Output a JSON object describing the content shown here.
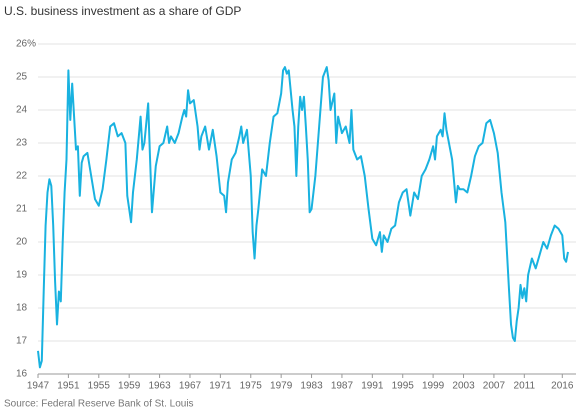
{
  "chart_data": {
    "type": "line",
    "title": "U.S. business investment as a share of GDP",
    "source": "Source: Federal Reserve Bank of St. Louis",
    "color": "#19b2e0",
    "grid": true,
    "xlim": [
      1947,
      2016.75
    ],
    "xticks": [
      1947,
      1951,
      1955,
      1959,
      1963,
      1967,
      1971,
      1975,
      1979,
      1983,
      1987,
      1991,
      1995,
      1999,
      2003,
      2007,
      2011,
      2016
    ],
    "ylim": [
      16,
      26
    ],
    "yticks": [
      16,
      17,
      18,
      19,
      20,
      21,
      22,
      23,
      24,
      25,
      {
        "value": 26,
        "label": "26%"
      }
    ],
    "x": [
      1947.0,
      1947.25,
      1947.5,
      1947.75,
      1948,
      1948.25,
      1948.5,
      1948.75,
      1949,
      1949.25,
      1949.5,
      1949.75,
      1950,
      1950.25,
      1950.5,
      1950.75,
      1951,
      1951.25,
      1951.5,
      1951.75,
      1952,
      1952.25,
      1952.5,
      1952.75,
      1953,
      1953.5,
      1954,
      1954.5,
      1955,
      1955.5,
      1956,
      1956.5,
      1957,
      1957.5,
      1958,
      1958.5,
      1958.75,
      1959,
      1959.25,
      1959.5,
      1960,
      1960.5,
      1960.75,
      1961,
      1961.5,
      1961.75,
      1962,
      1962.25,
      1962.5,
      1963,
      1963.5,
      1964,
      1964.25,
      1964.5,
      1965,
      1965.5,
      1966,
      1966.25,
      1966.5,
      1966.75,
      1967,
      1967.5,
      1968,
      1968.25,
      1968.5,
      1969,
      1969.5,
      1970,
      1970.5,
      1971,
      1971.5,
      1971.75,
      1972,
      1972.5,
      1973,
      1973.5,
      1973.75,
      1974,
      1974.5,
      1975,
      1975.25,
      1975.5,
      1975.75,
      1976,
      1976.5,
      1977,
      1977.5,
      1978,
      1978.5,
      1979,
      1979.25,
      1979.5,
      1979.75,
      1980,
      1980.5,
      1980.75,
      1981,
      1981.25,
      1981.5,
      1981.75,
      1982,
      1982.25,
      1982.5,
      1982.75,
      1983,
      1983.5,
      1984,
      1984.5,
      1985,
      1985.25,
      1985.5,
      1986,
      1986.25,
      1986.5,
      1987,
      1987.5,
      1988,
      1988.25,
      1988.5,
      1989,
      1989.5,
      1990,
      1990.5,
      1991,
      1991.5,
      1992,
      1992.25,
      1992.5,
      1993,
      1993.5,
      1994,
      1994.5,
      1995,
      1995.5,
      1996,
      1996.5,
      1997,
      1997.5,
      1998,
      1998.5,
      1999,
      1999.25,
      1999.5,
      2000,
      2000.25,
      2000.5,
      2000.75,
      2001,
      2001.5,
      2002,
      2002.25,
      2002.5,
      2003,
      2003.5,
      2004,
      2004.5,
      2005,
      2005.5,
      2006,
      2006.5,
      2007,
      2007.5,
      2008,
      2008.5,
      2009,
      2009.25,
      2009.5,
      2009.75,
      2010,
      2010.25,
      2010.5,
      2010.75,
      2011,
      2011.25,
      2011.5,
      2012,
      2012.5,
      2013,
      2013.5,
      2014,
      2014.5,
      2015,
      2015.5,
      2016,
      2016.25,
      2016.5,
      2016.75
    ],
    "values": [
      16.7,
      16.2,
      16.4,
      18.5,
      20.5,
      21.5,
      21.9,
      21.7,
      20.5,
      18.8,
      17.5,
      18.5,
      18.2,
      20.0,
      21.5,
      22.5,
      25.2,
      23.7,
      24.8,
      23.8,
      22.8,
      22.9,
      21.4,
      22.4,
      22.6,
      22.7,
      22.0,
      21.3,
      21.1,
      21.6,
      22.5,
      23.5,
      23.6,
      23.2,
      23.3,
      23.0,
      21.4,
      21.0,
      20.6,
      21.5,
      22.5,
      23.8,
      22.8,
      23.0,
      24.2,
      22.5,
      20.9,
      21.6,
      22.3,
      22.9,
      23.0,
      23.5,
      23.0,
      23.2,
      23.0,
      23.3,
      23.8,
      24.0,
      23.8,
      24.6,
      24.2,
      24.3,
      23.5,
      22.8,
      23.2,
      23.5,
      22.8,
      23.4,
      22.6,
      21.5,
      21.4,
      20.9,
      21.8,
      22.5,
      22.7,
      23.2,
      23.5,
      23.0,
      23.4,
      22.0,
      20.3,
      19.5,
      20.5,
      21.0,
      22.2,
      22.0,
      23.0,
      23.8,
      23.9,
      24.5,
      25.2,
      25.3,
      25.1,
      25.2,
      24.0,
      23.5,
      22.0,
      23.5,
      24.4,
      24.0,
      24.4,
      23.5,
      22.5,
      20.9,
      21.0,
      22.0,
      23.5,
      25.0,
      25.3,
      24.9,
      24.0,
      24.5,
      23.0,
      23.8,
      23.3,
      23.5,
      23.0,
      24.0,
      22.8,
      22.5,
      22.6,
      22.0,
      21.0,
      20.1,
      19.9,
      20.3,
      19.7,
      20.2,
      20.0,
      20.4,
      20.5,
      21.2,
      21.5,
      21.6,
      20.8,
      21.5,
      21.3,
      22.0,
      22.2,
      22.5,
      22.9,
      22.5,
      23.2,
      23.4,
      23.2,
      23.9,
      23.4,
      23.1,
      22.5,
      21.2,
      21.7,
      21.6,
      21.6,
      21.5,
      22.0,
      22.6,
      22.9,
      23.0,
      23.6,
      23.7,
      23.3,
      22.7,
      21.5,
      20.6,
      18.5,
      17.5,
      17.1,
      17.0,
      17.6,
      18.0,
      18.7,
      18.3,
      18.6,
      18.2,
      19.0,
      19.5,
      19.2,
      19.6,
      20.0,
      19.8,
      20.2,
      20.5,
      20.4,
      20.2,
      19.5,
      19.4,
      19.7
    ]
  }
}
